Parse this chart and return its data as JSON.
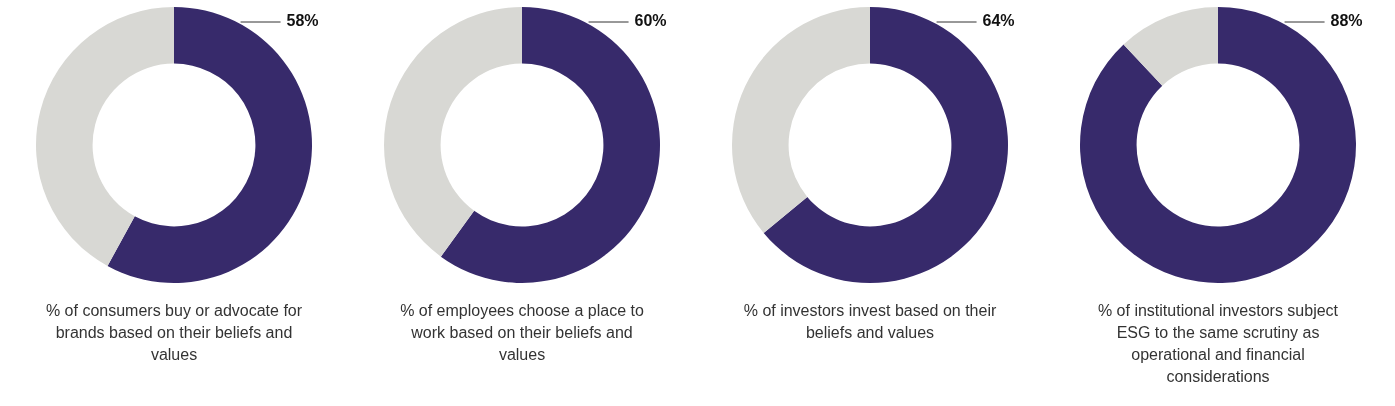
{
  "chart_data": [
    {
      "type": "donut",
      "title": "% of consumers buy or advocate for brands based on their beliefs and values",
      "categories": [
        null,
        null
      ],
      "values": [
        58,
        42
      ],
      "colors": [
        "#372a6b",
        "#d8d8d4"
      ],
      "value_labels": [
        "58%",
        null
      ],
      "legend": false
    },
    {
      "type": "donut",
      "title": "% of employees choose a place to work based on their beliefs and values",
      "categories": [
        null,
        null
      ],
      "values": [
        60,
        40
      ],
      "colors": [
        "#372a6b",
        "#d8d8d4"
      ],
      "value_labels": [
        "60%",
        null
      ],
      "legend": false
    },
    {
      "type": "donut",
      "title": "% of investors invest based on their beliefs and values",
      "categories": [
        null,
        null
      ],
      "values": [
        64,
        36
      ],
      "colors": [
        "#372a6b",
        "#d8d8d4"
      ],
      "value_labels": [
        "64%",
        null
      ],
      "legend": false
    },
    {
      "type": "donut",
      "title": "% of institutional investors subject ESG to the same scrutiny as operational and financial considerations",
      "categories": [
        null,
        null
      ],
      "values": [
        88,
        12
      ],
      "colors": [
        "#372a6b",
        "#d8d8d4"
      ],
      "value_labels": [
        "88%",
        null
      ],
      "legend": false
    }
  ]
}
